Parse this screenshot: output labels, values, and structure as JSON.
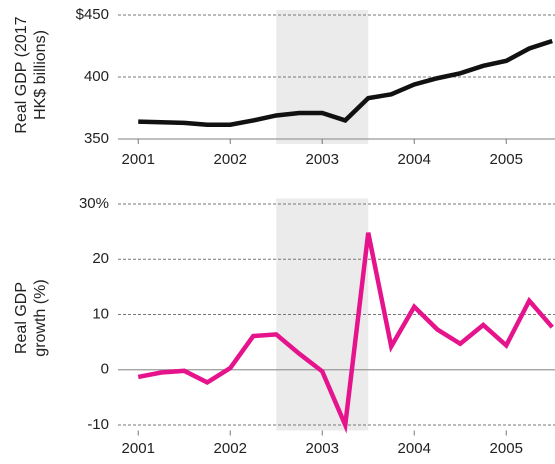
{
  "chart_data": [
    {
      "type": "line",
      "ylabel": "Real GDP (2017 HK$ billions)",
      "x": [
        2001,
        2001.25,
        2001.5,
        2001.75,
        2002,
        2002.25,
        2002.5,
        2002.75,
        2003,
        2003.25,
        2003.5,
        2003.75,
        2004,
        2004.25,
        2004.5,
        2004.75,
        2005,
        2005.25,
        2005.5
      ],
      "series": [
        {
          "color": "#111111",
          "values": [
            364,
            363.5,
            363,
            361.5,
            361.5,
            365,
            369,
            371,
            371,
            365,
            383,
            386,
            394,
            399,
            403,
            409,
            413,
            423,
            429
          ]
        }
      ],
      "xlim": [
        2000.78,
        2005.53
      ],
      "xticks": [
        2001,
        2002,
        2003,
        2004,
        2005
      ],
      "ylim": [
        346,
        454
      ],
      "yticks": [
        350,
        400,
        {
          "value": 450,
          "label": "$450"
        }
      ],
      "shaded_range": [
        2002.5,
        2003.5
      ],
      "grid": true
    },
    {
      "type": "line",
      "ylabel": "Real GDP growth (%)",
      "x": [
        2001,
        2001.25,
        2001.5,
        2001.75,
        2002,
        2002.25,
        2002.5,
        2002.75,
        2003,
        2003.25,
        2003.5,
        2003.75,
        2004,
        2004.25,
        2004.5,
        2004.75,
        2005,
        2005.25,
        2005.5
      ],
      "series": [
        {
          "color": "#e6148c",
          "values": [
            -1.3,
            -0.5,
            -0.2,
            -2.3,
            0.3,
            6.1,
            6.4,
            2.9,
            -0.3,
            -10,
            24.8,
            4.2,
            11.4,
            7.3,
            4.7,
            8.1,
            4.4,
            12.5,
            7.7
          ]
        }
      ],
      "xlim": [
        2000.78,
        2005.53
      ],
      "xticks": [
        2001,
        2002,
        2003,
        2004,
        2005
      ],
      "ylim": [
        -11,
        31
      ],
      "yticks": [
        -10,
        0,
        10,
        20,
        {
          "value": 30,
          "label": "30%"
        }
      ],
      "shaded_range": [
        2002.5,
        2003.5
      ],
      "grid": true
    }
  ]
}
